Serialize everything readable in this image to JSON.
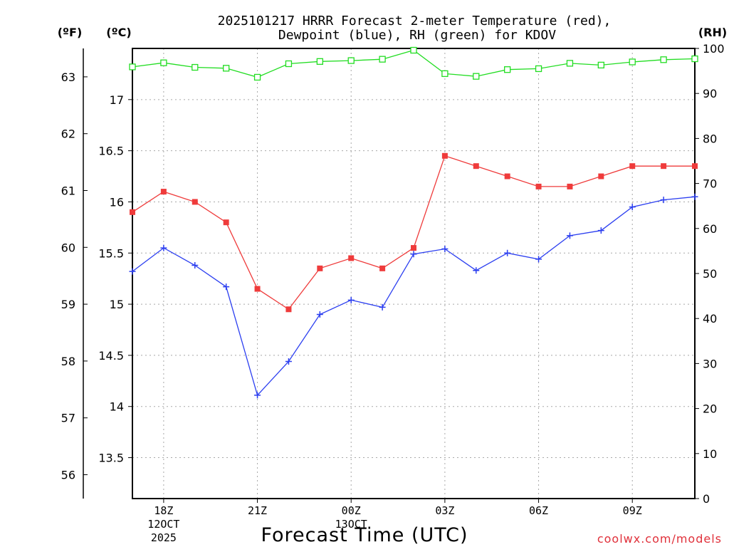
{
  "chart_data": {
    "type": "line",
    "title_line1": "2025101217 HRRR Forecast 2-meter Temperature (red),",
    "title_line2": "Dewpoint (blue), RH (green) for KDOV",
    "xlabel": "Forecast Time (UTC)",
    "credit": "coolwx.com/models",
    "unit_labels": {
      "fahrenheit": "(ºF)",
      "celsius": "(ºC)",
      "rh": "(RH)"
    },
    "x_hours": [
      17,
      18,
      19,
      20,
      21,
      22,
      23,
      24,
      25,
      26,
      27,
      28,
      29,
      30,
      31,
      32,
      33,
      34,
      35
    ],
    "x_range": [
      17,
      35
    ],
    "x_ticks": [
      {
        "hour": 18,
        "label": "18Z",
        "date": "12OCT",
        "year": "2025"
      },
      {
        "hour": 21,
        "label": "21Z"
      },
      {
        "hour": 24,
        "label": "00Z",
        "date": "13OCT"
      },
      {
        "hour": 27,
        "label": "03Z"
      },
      {
        "hour": 30,
        "label": "06Z"
      },
      {
        "hour": 33,
        "label": "09Z"
      }
    ],
    "celsius_axis": {
      "range": [
        13.1,
        17.5
      ],
      "ticks": [
        "13.5",
        "14",
        "14.5",
        "15",
        "15.5",
        "16",
        "16.5",
        "17"
      ]
    },
    "fahrenheit_axis": {
      "ticks": [
        "56",
        "57",
        "58",
        "59",
        "60",
        "61",
        "62",
        "63"
      ]
    },
    "rh_axis": {
      "range": [
        0,
        100
      ],
      "ticks": [
        "0",
        "10",
        "20",
        "30",
        "40",
        "50",
        "60",
        "70",
        "80",
        "90",
        "100"
      ]
    },
    "series": [
      {
        "name": "2-meter Temperature",
        "axis": "celsius",
        "color": "#ef3b3b",
        "marker": "filled-square",
        "values": [
          15.9,
          16.1,
          16.0,
          15.8,
          15.15,
          14.95,
          15.35,
          15.45,
          15.35,
          15.55,
          16.45,
          16.35,
          16.25,
          16.15,
          16.15,
          16.25,
          16.35,
          16.35,
          16.35
        ]
      },
      {
        "name": "Dewpoint",
        "axis": "celsius",
        "color": "#2c3ff0",
        "marker": "plus",
        "values": [
          15.32,
          15.55,
          15.38,
          15.17,
          14.11,
          14.44,
          14.9,
          15.04,
          14.97,
          15.49,
          15.54,
          15.33,
          15.5,
          15.44,
          15.67,
          15.72,
          15.95,
          16.02,
          16.05
        ]
      },
      {
        "name": "RH",
        "axis": "rh",
        "color": "#22dd22",
        "marker": "open-square",
        "values": [
          95.9,
          96.8,
          95.8,
          95.6,
          93.6,
          96.6,
          97.1,
          97.3,
          97.6,
          99.6,
          94.4,
          93.8,
          95.3,
          95.5,
          96.7,
          96.3,
          97.0,
          97.5,
          97.7
        ]
      }
    ],
    "grid": true
  },
  "colors": {
    "temperature": "#ef3b3b",
    "dewpoint": "#2c3ff0",
    "rh": "#22dd22",
    "credit": "#e0303a",
    "axis": "#000000",
    "grid": "#a8a8a8"
  }
}
